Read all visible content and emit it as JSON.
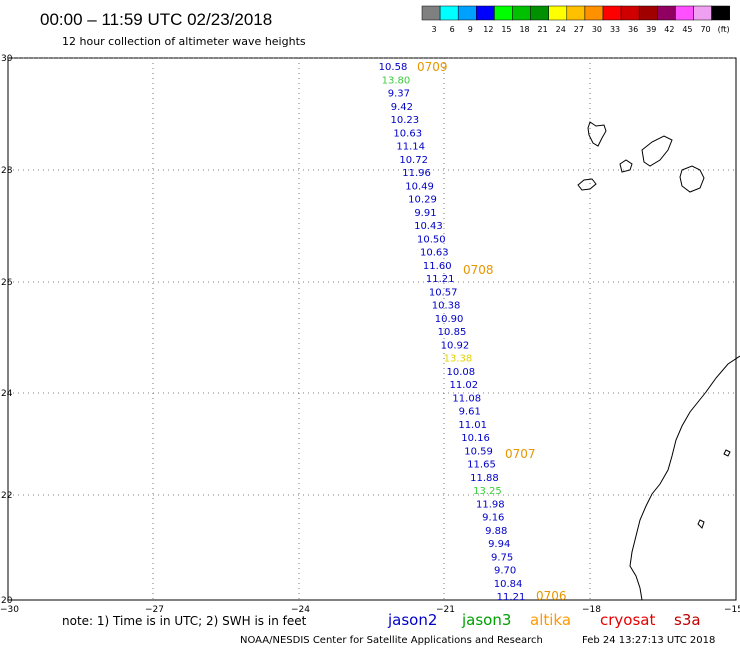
{
  "header": {
    "title": "00:00 – 11:59 UTC 02/23/2018",
    "subtitle": "12 hour collection of altimeter wave heights"
  },
  "colorbar": {
    "labels": [
      "3",
      "6",
      "9",
      "12",
      "15",
      "18",
      "21",
      "24",
      "27",
      "30",
      "33",
      "36",
      "39",
      "42",
      "45",
      "70",
      "(ft)"
    ],
    "colors": [
      "#808080",
      "#00ffff",
      "#00a0ff",
      "#0000ff",
      "#00ff00",
      "#00c000",
      "#009000",
      "#ffff00",
      "#ffc000",
      "#ff9000",
      "#ff0000",
      "#d00000",
      "#a00000",
      "#900060",
      "#ff50ff",
      "#f0a0f0",
      "#000000"
    ]
  },
  "axes": {
    "x_ticks": [
      "−30",
      "−27",
      "−24",
      "−21",
      "−18",
      "−15"
    ],
    "y_ticks": [
      "30",
      "28",
      "26",
      "24",
      "22",
      "20"
    ]
  },
  "track": {
    "observations": [
      {
        "v": "10.58",
        "c": "#0000c8"
      },
      {
        "v": "13.80",
        "c": "#3ccc3c"
      },
      {
        "v": "9.37",
        "c": "#0000c8"
      },
      {
        "v": "9.42",
        "c": "#0000c8"
      },
      {
        "v": "10.23",
        "c": "#0000c8"
      },
      {
        "v": "10.63",
        "c": "#0000c8"
      },
      {
        "v": "11.14",
        "c": "#0000c8"
      },
      {
        "v": "10.72",
        "c": "#0000c8"
      },
      {
        "v": "11.96",
        "c": "#0000c8"
      },
      {
        "v": "10.49",
        "c": "#0000c8"
      },
      {
        "v": "10.29",
        "c": "#0000c8"
      },
      {
        "v": "9.91",
        "c": "#0000c8"
      },
      {
        "v": "10.43",
        "c": "#0000c8"
      },
      {
        "v": "10.50",
        "c": "#0000c8"
      },
      {
        "v": "10.63",
        "c": "#0000c8"
      },
      {
        "v": "11.60",
        "c": "#0000c8"
      },
      {
        "v": "11.21",
        "c": "#0000c8"
      },
      {
        "v": "10.57",
        "c": "#0000c8"
      },
      {
        "v": "10.38",
        "c": "#0000c8"
      },
      {
        "v": "10.90",
        "c": "#0000c8"
      },
      {
        "v": "10.85",
        "c": "#0000c8"
      },
      {
        "v": "10.92",
        "c": "#0000c8"
      },
      {
        "v": "13.38",
        "c": "#e6d200"
      },
      {
        "v": "10.08",
        "c": "#0000c8"
      },
      {
        "v": "11.02",
        "c": "#0000c8"
      },
      {
        "v": "11.08",
        "c": "#0000c8"
      },
      {
        "v": "9.61",
        "c": "#0000c8"
      },
      {
        "v": "11.01",
        "c": "#0000c8"
      },
      {
        "v": "10.16",
        "c": "#0000c8"
      },
      {
        "v": "10.59",
        "c": "#0000c8"
      },
      {
        "v": "11.65",
        "c": "#0000c8"
      },
      {
        "v": "11.88",
        "c": "#0000c8"
      },
      {
        "v": "13.25",
        "c": "#3ccc3c"
      },
      {
        "v": "11.98",
        "c": "#0000c8"
      },
      {
        "v": "9.16",
        "c": "#0000c8"
      },
      {
        "v": "9.88",
        "c": "#0000c8"
      },
      {
        "v": "9.94",
        "c": "#0000c8"
      },
      {
        "v": "9.75",
        "c": "#0000c8"
      },
      {
        "v": "9.70",
        "c": "#0000c8"
      },
      {
        "v": "10.84",
        "c": "#0000c8"
      },
      {
        "v": "11.21",
        "c": "#0000c8"
      }
    ],
    "times": [
      "0709",
      "0708",
      "0707",
      "0706"
    ],
    "time_color": "#e69600"
  },
  "footer": {
    "note": "note: 1) Time is in UTC; 2) SWH is in feet",
    "satellites": [
      {
        "name": "jason2",
        "color": "#0000c8"
      },
      {
        "name": "jason3",
        "color": "#00a000"
      },
      {
        "name": "altika",
        "color": "#ff9900"
      },
      {
        "name": "cryosat",
        "color": "#e60000"
      },
      {
        "name": "s3a",
        "color": "#c00000"
      }
    ],
    "credit": "NOAA/NESDIS Center for Satellite Applications and Research",
    "generated": "Feb 24 13:27:13 UTC 2018"
  }
}
